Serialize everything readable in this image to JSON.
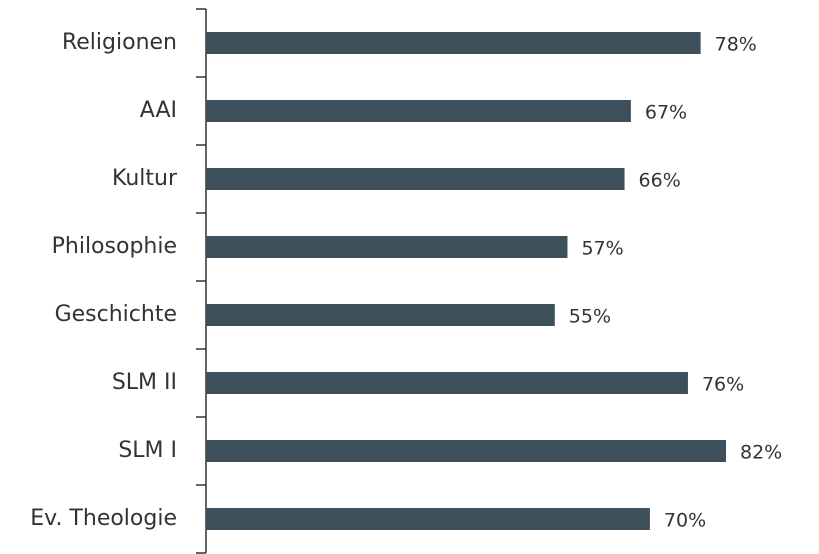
{
  "chart_data": {
    "type": "bar",
    "orientation": "horizontal",
    "categories": [
      "Religionen",
      "AAI",
      "Kultur",
      "Philosophie",
      "Geschichte",
      "SLM II",
      "SLM I",
      "Ev. Theologie"
    ],
    "values": [
      78,
      67,
      66,
      57,
      55,
      76,
      82,
      70
    ],
    "value_labels": [
      "78%",
      "67%",
      "66%",
      "57%",
      "55%",
      "76%",
      "82%",
      "70%"
    ],
    "color": "#3d4f5a"
  }
}
